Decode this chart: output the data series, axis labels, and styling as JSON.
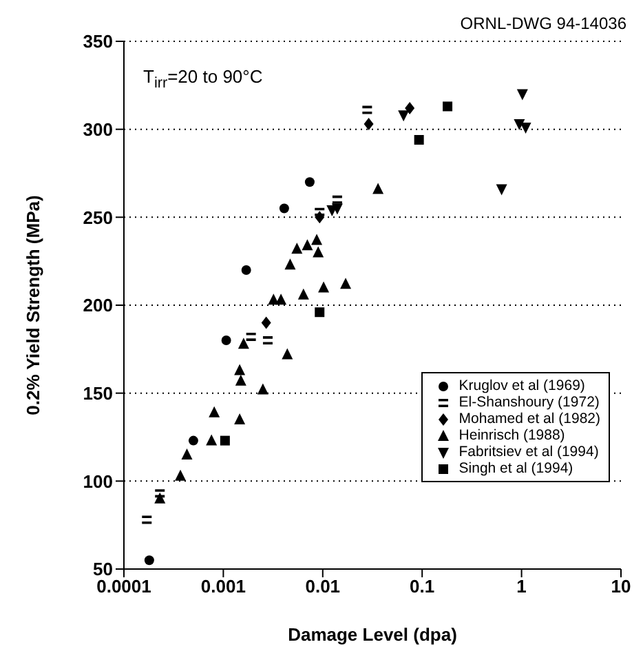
{
  "chart_data": {
    "type": "scatter",
    "xlabel": "Damage Level (dpa)",
    "ylabel": "0.2% Yield Strength (MPa)",
    "annotations": [
      "ORNL-DWG 94-14036",
      "T$_{irr}$=20 to 90°C"
    ],
    "log": "x",
    "xlim": [
      0.0001,
      10
    ],
    "xticks": [
      0.0001,
      0.001,
      0.01,
      0.1,
      1,
      10
    ],
    "ylim": [
      50,
      350
    ],
    "yticks": [
      50,
      100,
      150,
      200,
      250,
      300,
      350
    ],
    "grid": "y",
    "legend": "bottom right",
    "series": [
      {
        "name": "Kruglov et al (1969)",
        "color": "#000000",
        "marker": "circle",
        "x": [
          0.00018,
          0.0005,
          0.00107,
          0.0017,
          0.0041,
          0.0074
        ],
        "values": [
          55,
          123,
          180,
          220,
          255,
          270
        ]
      },
      {
        "name": "El-Shanshoury (1972)",
        "color": "#000000",
        "x": [
          0.00017,
          0.00023,
          0.0019,
          0.0028,
          0.0093,
          0.014,
          0.028
        ],
        "values": [
          78,
          93,
          182,
          180,
          253,
          260,
          311
        ]
      },
      {
        "name": "Mohamed et al (1982)",
        "color": "#000000",
        "marker": "diamond",
        "x": [
          0.0027,
          0.0093,
          0.029,
          0.075
        ],
        "values": [
          190,
          250,
          303,
          312
        ]
      },
      {
        "name": "Heinrisch (1988)",
        "color": "#000000",
        "marker": "triangle",
        "x": [
          0.00023,
          0.00037,
          0.00043,
          0.00076,
          0.00081,
          0.00146,
          0.00146,
          0.0015,
          0.0016,
          0.0025,
          0.0044,
          0.0032,
          0.0038,
          0.0047,
          0.0055,
          0.007,
          0.0087,
          0.009,
          0.0064,
          0.0102,
          0.017,
          0.036
        ],
        "values": [
          90,
          103,
          115,
          123,
          139,
          135,
          163,
          157,
          178,
          152,
          172,
          203,
          203,
          223,
          232,
          234,
          237,
          230,
          206,
          210,
          212,
          266
        ]
      },
      {
        "name": "Fabritsiev et al (1994)",
        "color": "#000000",
        "marker": "triangle-down",
        "x": [
          0.0124,
          0.014,
          0.065,
          0.63,
          1.02,
          0.95,
          1.1
        ],
        "values": [
          254,
          255,
          308,
          266,
          320,
          303,
          301
        ]
      },
      {
        "name": "Singh et al (1994)",
        "color": "#000000",
        "marker": "square",
        "x": [
          0.00104,
          0.0093,
          0.093,
          0.18
        ],
        "values": [
          123,
          196,
          294,
          313
        ]
      }
    ]
  }
}
